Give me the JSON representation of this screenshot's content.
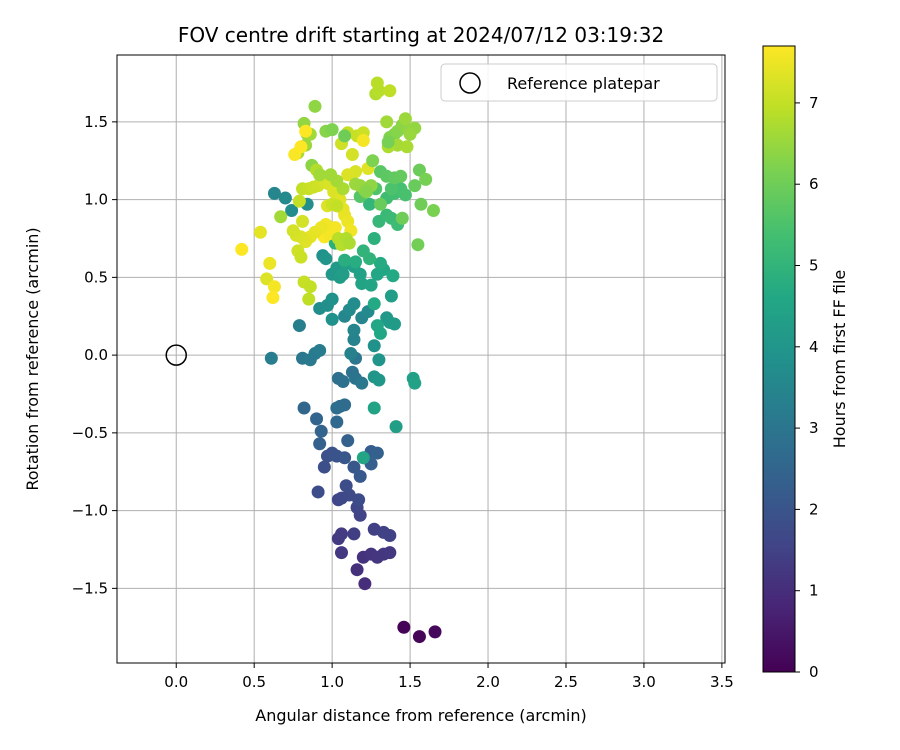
{
  "chart_data": {
    "type": "scatter",
    "title": "FOV centre drift starting at 2024/07/12 03:19:32",
    "xlabel": "Angular distance from reference (arcmin)",
    "ylabel": "Rotation from reference (arcmin)",
    "xlim": [
      -0.38,
      3.52
    ],
    "ylim": [
      -1.98,
      1.93
    ],
    "xticks": [
      0.0,
      0.5,
      1.0,
      1.5,
      2.0,
      2.5,
      3.0,
      3.5
    ],
    "xtick_labels": [
      "0.0",
      "0.5",
      "1.0",
      "1.5",
      "2.0",
      "2.5",
      "3.0",
      "3.5"
    ],
    "yticks": [
      -1.5,
      -1.0,
      -0.5,
      0.0,
      0.5,
      1.0,
      1.5
    ],
    "ytick_labels": [
      "−1.5",
      "−1.0",
      "−0.5",
      "0.0",
      "0.5",
      "1.0",
      "1.5"
    ],
    "grid": true,
    "legend": {
      "position": "top-right",
      "entries": [
        "Reference platepar"
      ]
    },
    "colorbar": {
      "label": "Hours from first FF file",
      "min": 0,
      "max": 7.7,
      "ticks": [
        0,
        1,
        2,
        3,
        4,
        5,
        6,
        7
      ],
      "tick_labels": [
        "0",
        "1",
        "2",
        "3",
        "4",
        "5",
        "6",
        "7"
      ],
      "colormap": "viridis"
    },
    "reference_point": {
      "x": 0.0,
      "y": 0.0
    },
    "series": [
      {
        "columns": [
          "x",
          "y",
          "hours"
        ],
        "points": [
          [
            1.46,
            -1.75,
            0.05
          ],
          [
            1.56,
            -1.81,
            0.1
          ],
          [
            1.66,
            -1.78,
            0.15
          ],
          [
            1.21,
            -1.47,
            1.0
          ],
          [
            1.16,
            -1.38,
            1.05
          ],
          [
            1.2,
            -1.3,
            1.1
          ],
          [
            1.25,
            -1.28,
            1.15
          ],
          [
            1.29,
            -1.3,
            1.2
          ],
          [
            1.33,
            -1.28,
            1.2
          ],
          [
            1.37,
            -1.27,
            1.25
          ],
          [
            1.06,
            -1.27,
            1.25
          ],
          [
            1.04,
            -1.18,
            1.3
          ],
          [
            1.06,
            -1.15,
            1.35
          ],
          [
            1.14,
            -1.15,
            1.4
          ],
          [
            1.27,
            -1.12,
            1.45
          ],
          [
            1.33,
            -1.14,
            1.5
          ],
          [
            1.37,
            -1.16,
            1.5
          ],
          [
            1.18,
            -1.03,
            1.55
          ],
          [
            1.16,
            -0.98,
            1.6
          ],
          [
            1.04,
            -0.93,
            1.6
          ],
          [
            1.06,
            -0.92,
            1.65
          ],
          [
            1.11,
            -0.9,
            1.7
          ],
          [
            1.17,
            -0.93,
            1.75
          ],
          [
            1.09,
            -0.84,
            1.8
          ],
          [
            0.91,
            -0.88,
            1.8
          ],
          [
            0.95,
            -0.72,
            1.85
          ],
          [
            0.97,
            -0.65,
            1.9
          ],
          [
            1.0,
            -0.63,
            1.95
          ],
          [
            1.03,
            -0.65,
            2.0
          ],
          [
            1.08,
            -0.66,
            2.05
          ],
          [
            1.14,
            -0.72,
            2.1
          ],
          [
            1.18,
            -0.78,
            2.15
          ],
          [
            1.21,
            -0.66,
            2.2
          ],
          [
            1.25,
            -0.62,
            2.25
          ],
          [
            1.25,
            -0.7,
            2.3
          ],
          [
            1.29,
            -0.63,
            2.35
          ],
          [
            1.1,
            -0.55,
            2.4
          ],
          [
            0.92,
            -0.57,
            2.4
          ],
          [
            0.93,
            -0.49,
            2.45
          ],
          [
            0.9,
            -0.41,
            2.5
          ],
          [
            0.82,
            -0.34,
            2.55
          ],
          [
            1.03,
            -0.43,
            2.6
          ],
          [
            1.05,
            -0.33,
            2.65
          ],
          [
            1.08,
            -0.32,
            2.7
          ],
          [
            1.03,
            -0.34,
            2.75
          ],
          [
            1.04,
            -0.15,
            2.8
          ],
          [
            1.07,
            -0.17,
            2.85
          ],
          [
            1.13,
            -0.11,
            2.9
          ],
          [
            1.15,
            -0.15,
            2.95
          ],
          [
            1.15,
            -0.02,
            3.0
          ],
          [
            1.19,
            -0.18,
            3.05
          ],
          [
            0.81,
            -0.02,
            3.05
          ],
          [
            0.86,
            -0.03,
            3.1
          ],
          [
            0.89,
            0.01,
            3.15
          ],
          [
            0.92,
            0.03,
            3.2
          ],
          [
            0.61,
            -0.02,
            3.25
          ],
          [
            0.79,
            0.19,
            3.3
          ],
          [
            1.12,
            0.01,
            3.35
          ],
          [
            1.14,
            0.1,
            3.4
          ],
          [
            1.14,
            0.16,
            3.45
          ],
          [
            1.08,
            0.25,
            3.5
          ],
          [
            1.19,
            0.24,
            3.55
          ],
          [
            1.23,
            0.28,
            3.6
          ],
          [
            1.11,
            0.29,
            3.65
          ],
          [
            1.14,
            0.33,
            3.7
          ],
          [
            0.92,
            0.3,
            3.75
          ],
          [
            0.97,
            0.32,
            3.8
          ],
          [
            1.0,
            0.36,
            3.85
          ],
          [
            1.0,
            0.23,
            3.9
          ],
          [
            1.27,
            0.06,
            3.9
          ],
          [
            1.3,
            -0.03,
            3.95
          ],
          [
            1.27,
            -0.14,
            4.0
          ],
          [
            1.3,
            -0.16,
            4.05
          ],
          [
            1.35,
            0.24,
            4.1
          ],
          [
            1.37,
            0.21,
            4.15
          ],
          [
            1.4,
            0.2,
            4.2
          ],
          [
            1.38,
            0.38,
            4.25
          ],
          [
            1.41,
            -0.46,
            4.3
          ],
          [
            1.52,
            -0.15,
            4.35
          ],
          [
            1.53,
            -0.18,
            4.4
          ],
          [
            1.27,
            -0.34,
            4.45
          ],
          [
            1.2,
            -0.66,
            4.5
          ],
          [
            1.29,
            0.19,
            4.55
          ],
          [
            1.31,
            0.14,
            4.6
          ],
          [
            1.27,
            0.33,
            4.65
          ],
          [
            0.63,
            1.04,
            3.5
          ],
          [
            0.7,
            1.01,
            3.6
          ],
          [
            0.74,
            0.93,
            3.7
          ],
          [
            0.84,
            0.97,
            3.8
          ],
          [
            0.94,
            0.64,
            3.9
          ],
          [
            0.96,
            0.62,
            4.0
          ],
          [
            1.0,
            0.52,
            4.1
          ],
          [
            1.03,
            0.56,
            4.15
          ],
          [
            1.05,
            0.5,
            4.2
          ],
          [
            1.07,
            0.52,
            4.25
          ],
          [
            1.09,
            0.59,
            4.3
          ],
          [
            1.14,
            0.57,
            4.35
          ],
          [
            1.18,
            0.52,
            4.4
          ],
          [
            1.19,
            0.46,
            4.45
          ],
          [
            1.25,
            0.45,
            4.5
          ],
          [
            1.29,
            0.52,
            4.55
          ],
          [
            1.33,
            0.55,
            4.6
          ],
          [
            1.39,
            0.51,
            4.65
          ],
          [
            1.31,
            0.59,
            4.7
          ],
          [
            1.15,
            0.6,
            4.75
          ],
          [
            1.08,
            0.61,
            4.8
          ],
          [
            1.02,
            0.72,
            4.85
          ],
          [
            1.27,
            0.75,
            4.9
          ],
          [
            1.24,
            0.62,
            4.95
          ],
          [
            1.2,
            0.67,
            5.0
          ],
          [
            1.24,
            0.97,
            5.05
          ],
          [
            1.3,
            0.86,
            5.1
          ],
          [
            1.35,
            0.9,
            5.15
          ],
          [
            1.38,
            0.88,
            5.2
          ],
          [
            1.42,
            0.84,
            5.25
          ],
          [
            1.35,
            1.01,
            5.3
          ],
          [
            1.4,
            1.04,
            5.35
          ],
          [
            1.44,
            1.07,
            5.4
          ],
          [
            1.47,
            1.03,
            5.45
          ],
          [
            1.38,
            1.07,
            5.5
          ],
          [
            1.28,
            1.07,
            5.55
          ],
          [
            1.21,
            1.05,
            5.6
          ],
          [
            1.18,
            1.02,
            5.65
          ],
          [
            1.31,
            1.18,
            5.7
          ],
          [
            1.35,
            1.15,
            5.75
          ],
          [
            1.4,
            1.14,
            5.8
          ],
          [
            1.44,
            1.15,
            5.85
          ],
          [
            1.53,
            1.09,
            5.9
          ],
          [
            1.56,
            1.19,
            5.95
          ],
          [
            1.57,
            0.97,
            6.0
          ],
          [
            1.55,
            0.71,
            6.05
          ],
          [
            1.6,
            1.13,
            6.1
          ],
          [
            1.65,
            0.93,
            6.15
          ],
          [
            1.37,
            1.4,
            6.2
          ],
          [
            1.4,
            1.42,
            6.25
          ],
          [
            1.42,
            1.44,
            6.3
          ],
          [
            1.45,
            1.48,
            6.35
          ],
          [
            1.49,
            1.45,
            6.4
          ],
          [
            1.53,
            1.46,
            6.45
          ],
          [
            1.5,
            1.42,
            6.5
          ],
          [
            1.47,
            1.52,
            6.55
          ],
          [
            1.35,
            1.5,
            6.6
          ],
          [
            1.42,
            1.35,
            6.65
          ],
          [
            1.48,
            1.34,
            6.7
          ],
          [
            1.36,
            1.34,
            6.75
          ],
          [
            1.28,
            1.68,
            6.8
          ],
          [
            1.3,
            1.7,
            6.85
          ],
          [
            1.29,
            1.75,
            6.9
          ],
          [
            1.37,
            1.7,
            6.95
          ],
          [
            1.1,
            1.43,
            7.0
          ],
          [
            1.16,
            1.41,
            7.05
          ],
          [
            1.2,
            1.43,
            7.1
          ],
          [
            1.06,
            1.36,
            7.15
          ],
          [
            1.13,
            1.29,
            7.2
          ],
          [
            1.15,
            1.18,
            7.25
          ],
          [
            1.1,
            1.16,
            7.3
          ],
          [
            1.23,
            1.2,
            7.35
          ],
          [
            0.96,
            1.44,
            6.3
          ],
          [
            0.87,
            1.22,
            6.35
          ],
          [
            0.89,
            1.6,
            6.4
          ],
          [
            0.82,
            1.49,
            6.45
          ],
          [
            0.84,
            1.42,
            6.5
          ],
          [
            0.83,
            1.35,
            6.55
          ],
          [
            0.86,
            1.42,
            6.6
          ],
          [
            0.78,
            1.3,
            6.7
          ],
          [
            0.9,
            1.19,
            6.8
          ],
          [
            0.92,
            1.16,
            6.9
          ],
          [
            0.81,
            1.07,
            7.0
          ],
          [
            0.85,
            1.07,
            7.05
          ],
          [
            0.88,
            1.08,
            7.1
          ],
          [
            0.91,
            1.09,
            7.15
          ],
          [
            0.95,
            1.11,
            7.2
          ],
          [
            0.98,
            1.1,
            7.25
          ],
          [
            1.01,
            1.05,
            7.3
          ],
          [
            1.05,
            1.0,
            7.35
          ],
          [
            1.07,
            0.94,
            7.4
          ],
          [
            1.08,
            0.9,
            7.45
          ],
          [
            1.1,
            0.86,
            7.5
          ],
          [
            1.12,
            0.8,
            7.55
          ],
          [
            1.02,
            0.82,
            7.6
          ],
          [
            0.95,
            0.76,
            7.65
          ],
          [
            0.98,
            0.78,
            7.6
          ],
          [
            0.96,
            0.84,
            7.55
          ],
          [
            0.93,
            0.82,
            7.5
          ],
          [
            0.89,
            0.79,
            7.45
          ],
          [
            0.86,
            0.76,
            7.4
          ],
          [
            0.83,
            0.73,
            7.35
          ],
          [
            0.8,
            0.76,
            7.3
          ],
          [
            0.77,
            0.77,
            7.25
          ],
          [
            0.75,
            0.8,
            7.2
          ],
          [
            0.78,
            0.67,
            7.15
          ],
          [
            0.8,
            0.63,
            7.1
          ],
          [
            0.82,
            0.47,
            7.05
          ],
          [
            0.86,
            0.44,
            7.0
          ],
          [
            0.85,
            0.36,
            6.95
          ],
          [
            1.04,
            0.75,
            6.9
          ],
          [
            1.06,
            0.71,
            6.85
          ],
          [
            1.09,
            0.75,
            6.8
          ],
          [
            1.11,
            0.72,
            6.75
          ],
          [
            1.07,
            1.07,
            6.7
          ],
          [
            1.03,
            1.12,
            6.65
          ],
          [
            0.99,
            1.16,
            6.6
          ],
          [
            1.15,
            1.1,
            6.55
          ],
          [
            1.18,
            1.09,
            6.5
          ],
          [
            1.21,
            1.06,
            6.45
          ],
          [
            1.25,
            1.09,
            6.4
          ],
          [
            1.2,
            1.38,
            7.6
          ],
          [
            0.76,
            1.29,
            7.65
          ],
          [
            0.8,
            1.34,
            7.7
          ],
          [
            0.83,
            1.44,
            7.7
          ],
          [
            0.42,
            0.68,
            7.7
          ],
          [
            0.54,
            0.79,
            7.4
          ],
          [
            0.58,
            0.49,
            7.3
          ],
          [
            0.6,
            0.59,
            7.5
          ],
          [
            0.63,
            0.44,
            7.6
          ],
          [
            0.62,
            0.37,
            7.7
          ],
          [
            0.67,
            0.89,
            6.6
          ],
          [
            0.79,
            0.99,
            7.0
          ],
          [
            0.81,
            0.86,
            7.2
          ],
          [
            0.97,
            0.96,
            7.3
          ],
          [
            1.0,
            0.97,
            7.1
          ],
          [
            1.03,
            0.96,
            7.0
          ],
          [
            0.92,
            1.16,
            6.6
          ],
          [
            1.26,
            1.25,
            6.2
          ],
          [
            1.36,
            1.37,
            6.1
          ],
          [
            1.45,
            0.88,
            6.0
          ],
          [
            1.31,
            0.97,
            5.9
          ],
          [
            1.08,
            1.41,
            6.0
          ],
          [
            1.0,
            1.45,
            6.2
          ],
          [
            1.22,
            1.05,
            6.3
          ]
        ]
      }
    ]
  }
}
